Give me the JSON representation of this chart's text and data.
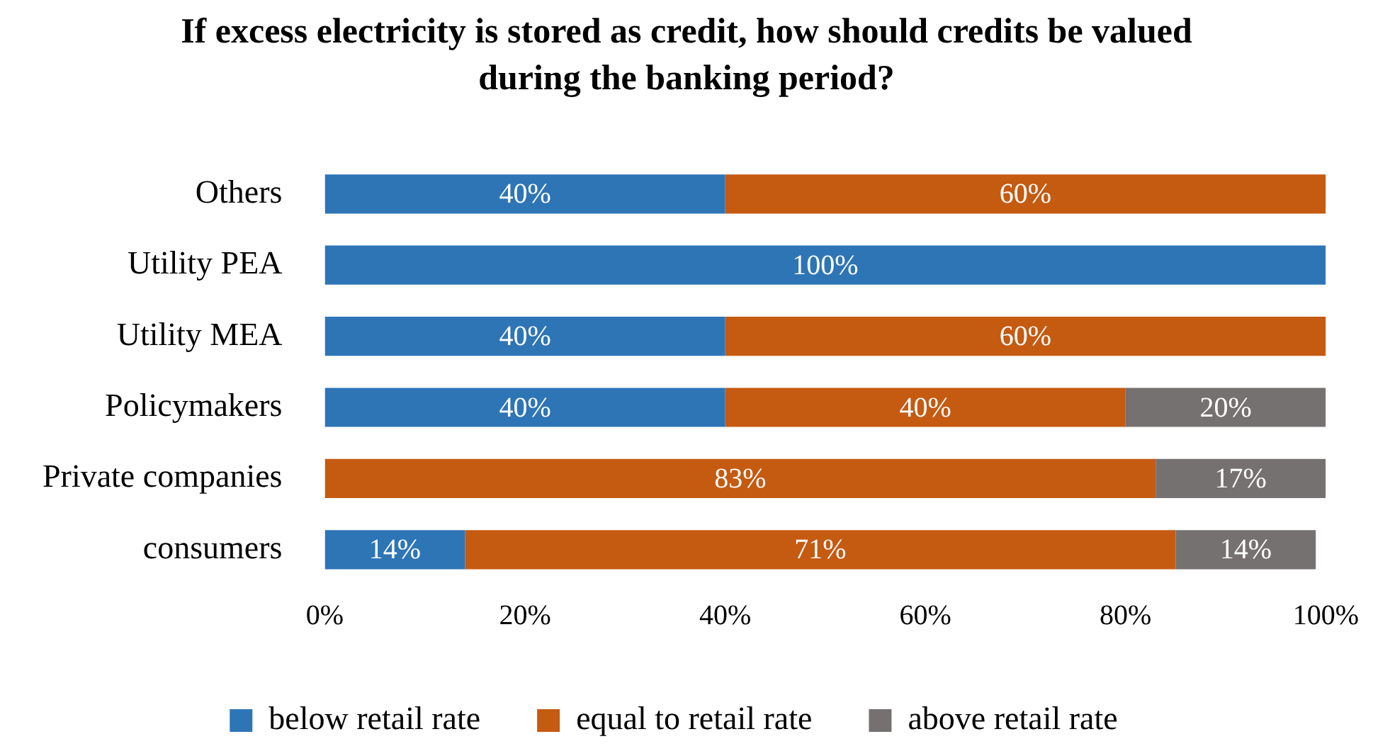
{
  "chart_data": {
    "type": "bar",
    "orientation": "horizontal",
    "stacked": true,
    "title": "If excess electricity is stored as credit, how should credits be valued during the banking period?",
    "categories": [
      "Others",
      "Utility PEA",
      "Utility MEA",
      "Policymakers",
      "Private companies",
      "consumers"
    ],
    "series": [
      {
        "name": "below retail rate",
        "color": "#2e75b6",
        "values": [
          40,
          100,
          40,
          40,
          null,
          14
        ],
        "value_labels": [
          "40%",
          "100%",
          "40%",
          "40%",
          null,
          "14%"
        ]
      },
      {
        "name": "equal to retail rate",
        "color": "#c55a11",
        "values": [
          60,
          null,
          60,
          40,
          83,
          71
        ],
        "value_labels": [
          "60%",
          null,
          "60%",
          "40%",
          "83%",
          "71%"
        ]
      },
      {
        "name": "above retail rate",
        "color": "#767171",
        "values": [
          null,
          null,
          null,
          20,
          17,
          14
        ],
        "value_labels": [
          null,
          null,
          null,
          "20%",
          "17%",
          "14%"
        ]
      }
    ],
    "xlim": [
      0,
      100
    ],
    "xticks": [
      {
        "value": 0,
        "label": "0%"
      },
      {
        "value": 20,
        "label": "20%"
      },
      {
        "value": 40,
        "label": "40%"
      },
      {
        "value": 60,
        "label": "60%"
      },
      {
        "value": 80,
        "label": "80%"
      },
      {
        "value": 100,
        "label": "100%"
      }
    ],
    "grid": false,
    "legend": "bottom"
  }
}
